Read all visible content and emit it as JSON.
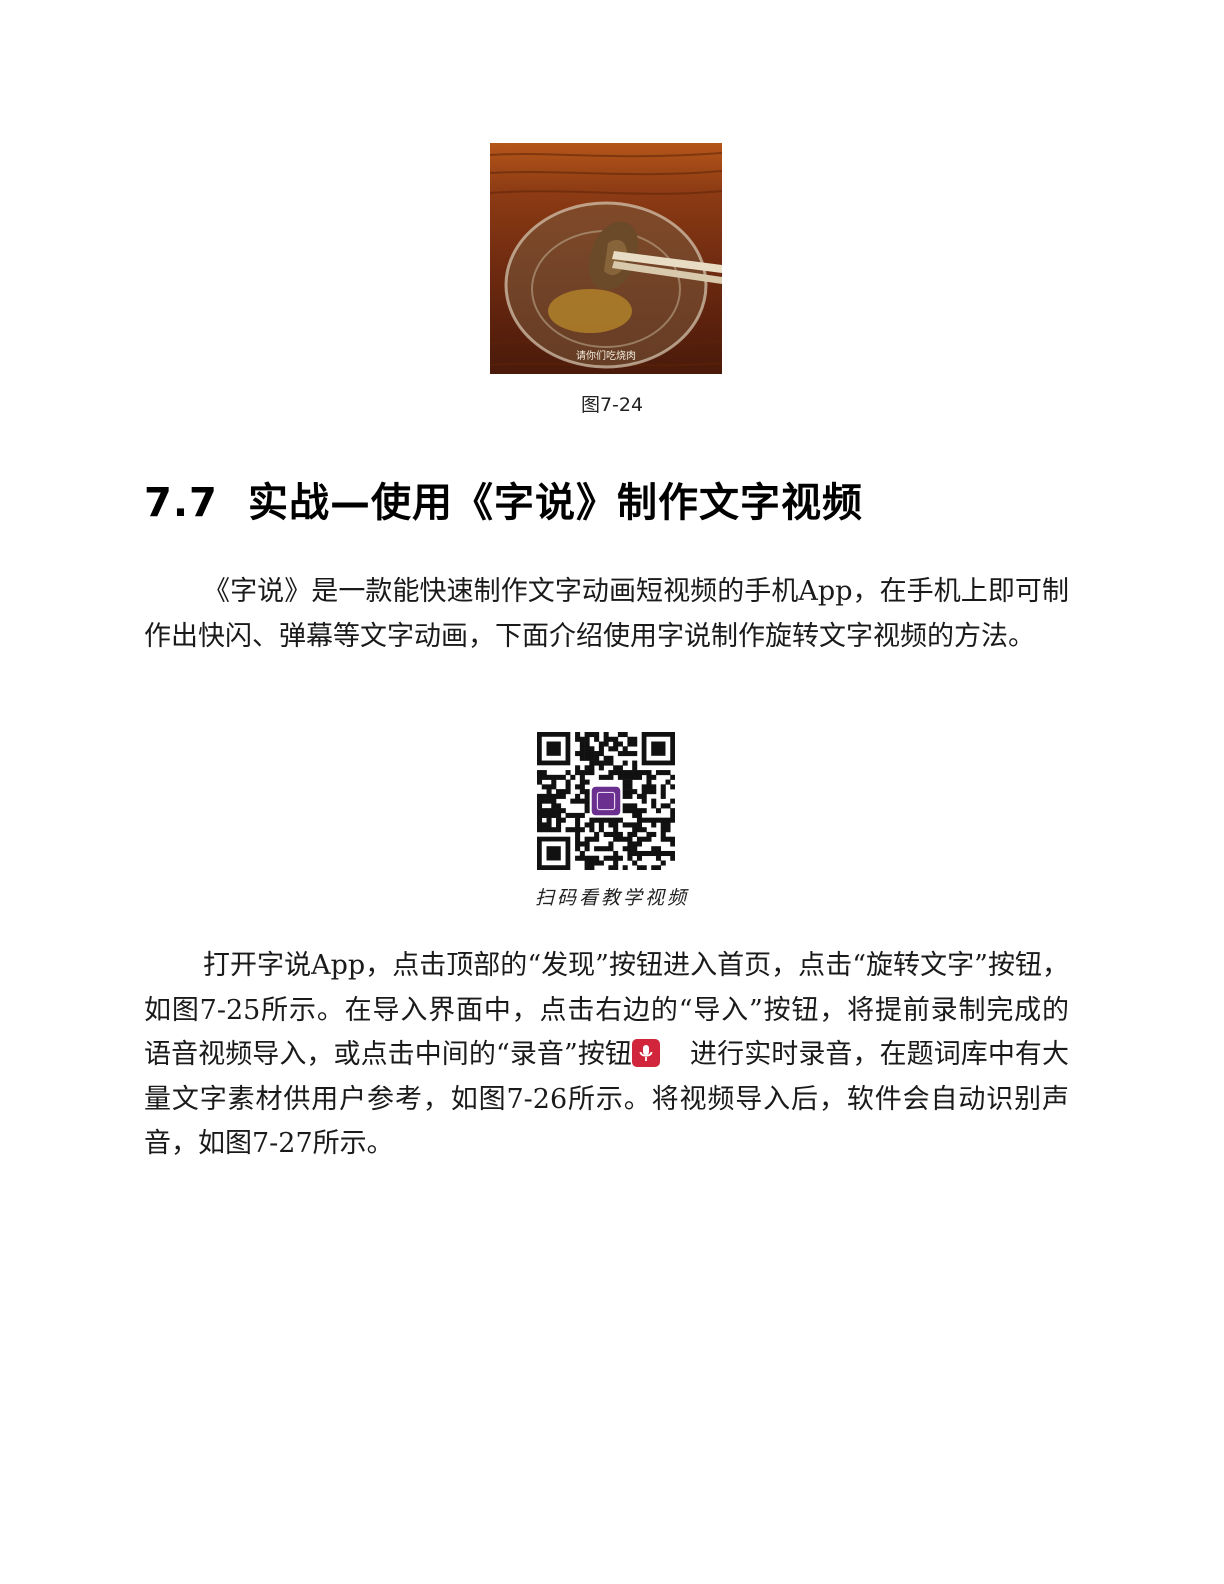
{
  "figure": {
    "photo_overlay_text": "请你们吃烧肉",
    "caption": "图7-24"
  },
  "section": {
    "number": "7.7",
    "title": "实战—使用《字说》制作文字视频"
  },
  "paragraph1": "《字说》是一款能快速制作文字动画短视频的手机App，在手机上即可制作出快闪、弹幕等文字动画，下面介绍使用字说制作旋转文字视频的方法。",
  "qr": {
    "caption": "扫码看教学视频"
  },
  "paragraph2": {
    "before_icon": "打开字说App，点击顶部的“发现”按钮进入首页，点击“旋转文字”按钮，如图7-25所示。在导入界面中，点击右边的“导入”按钮，将提前录制完成的语音视频导入，或点击中间的“录音”按钮",
    "after_icon": "进行实时录音，在题词库中有大量文字素材供用户参考，如图7-26所示。将视频导入后，软件会自动识别声音，如图7-27所示。"
  },
  "icons": {
    "record_button": "microphone-icon",
    "record_button_color": "#d0253a"
  }
}
